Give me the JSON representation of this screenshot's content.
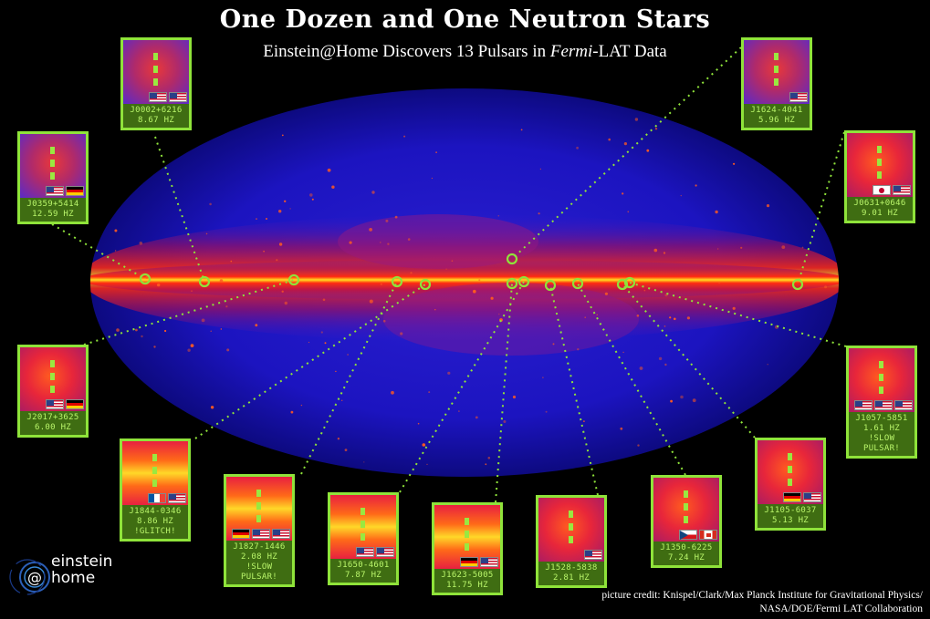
{
  "title": "One Dozen and One Neutron Stars",
  "subtitle_pre": "Einstein@Home Discovers 13 Pulsars in ",
  "subtitle_italic": "Fermi",
  "subtitle_post": "-LAT Data",
  "pulsars": [
    {
      "name": "J0002+6216",
      "freq": "8.67 HZ",
      "note": "",
      "flags": [
        "us",
        "us"
      ],
      "tint": "blue"
    },
    {
      "name": "J0359+5414",
      "freq": "12.59 HZ",
      "note": "",
      "flags": [
        "us",
        "de"
      ],
      "tint": "blue"
    },
    {
      "name": "J2017+3625",
      "freq": "6.00 HZ",
      "note": "",
      "flags": [
        "us",
        "de"
      ],
      "tint": "red"
    },
    {
      "name": "J1844-0346",
      "freq": "8.86 HZ",
      "note": "!GLITCH!",
      "flags": [
        "fr",
        "us"
      ],
      "tint": "yellow"
    },
    {
      "name": "J1827-1446",
      "freq": "2.08 HZ",
      "note": "!SLOW PULSAR!",
      "flags": [
        "de",
        "us",
        "us"
      ],
      "tint": "yellow"
    },
    {
      "name": "J1650-4601",
      "freq": "7.87 HZ",
      "note": "",
      "flags": [
        "us",
        "us"
      ],
      "tint": "yellow"
    },
    {
      "name": "J1623-5005",
      "freq": "11.75 HZ",
      "note": "",
      "flags": [
        "de",
        "us"
      ],
      "tint": "yellow"
    },
    {
      "name": "J1528-5838",
      "freq": "2.81 HZ",
      "note": "",
      "flags": [
        "us"
      ],
      "tint": "red"
    },
    {
      "name": "J1350-6225",
      "freq": "7.24 HZ",
      "note": "",
      "flags": [
        "cz",
        "ca"
      ],
      "tint": "red"
    },
    {
      "name": "J1105-6037",
      "freq": "5.13 HZ",
      "note": "",
      "flags": [
        "de",
        "us"
      ],
      "tint": "red"
    },
    {
      "name": "J1057-5851",
      "freq": "1.61 HZ",
      "note": "!SLOW PULSAR!",
      "flags": [
        "us",
        "us",
        "us"
      ],
      "tint": "red"
    },
    {
      "name": "J0631+0646",
      "freq": "9.01 HZ",
      "note": "",
      "flags": [
        "jp",
        "us"
      ],
      "tint": "red"
    },
    {
      "name": "J1624-4041",
      "freq": "5.96 HZ",
      "note": "",
      "flags": [
        "us"
      ],
      "tint": "blue"
    }
  ],
  "logo": {
    "line1": "einstein",
    "line2": "home"
  },
  "credit_line1": "picture credit: Knispel/Clark/Max Planck Institute for Gravitational Physics/",
  "credit_line2": "NASA/DOE/Fermi LAT Collaboration"
}
